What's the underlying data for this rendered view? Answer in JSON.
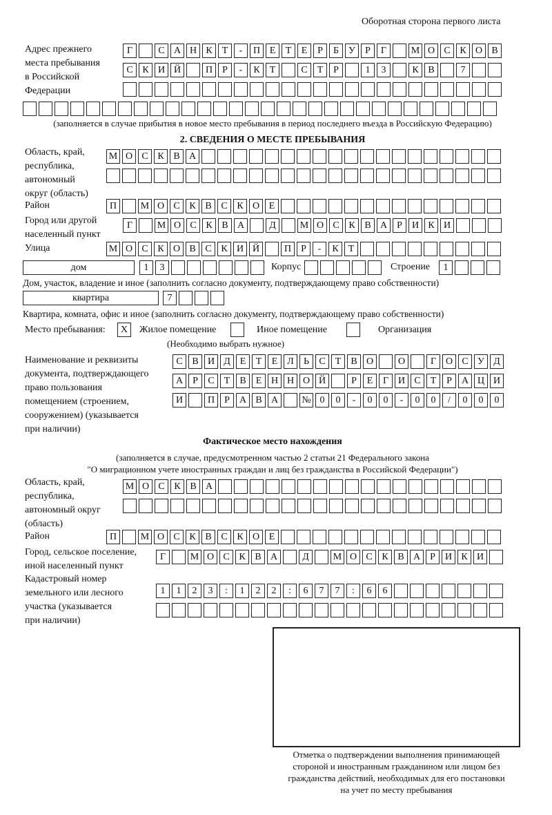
{
  "page_header": "Оборотная сторона первого листа",
  "previous_address": {
    "label": "Адрес прежнего\nместа пребывания\nв Российской\nФедерации",
    "rows": [
      [
        "Г",
        "",
        "С",
        "А",
        "Н",
        "К",
        "Т",
        "-",
        "П",
        "Е",
        "Т",
        "Е",
        "Р",
        "Б",
        "У",
        "Р",
        "Г",
        "",
        "М",
        "О",
        "С",
        "К",
        "О",
        "В"
      ],
      [
        "С",
        "К",
        "И",
        "Й",
        "",
        "П",
        "Р",
        "-",
        "К",
        "Т",
        "",
        "С",
        "Т",
        "Р",
        "",
        "1",
        "3",
        "",
        "К",
        "В",
        "",
        "7",
        "",
        ""
      ],
      [
        "",
        "",
        "",
        "",
        "",
        "",
        "",
        "",
        "",
        "",
        "",
        "",
        "",
        "",
        "",
        "",
        "",
        "",
        "",
        "",
        "",
        "",
        "",
        ""
      ],
      [
        "",
        "",
        "",
        "",
        "",
        "",
        "",
        "",
        "",
        "",
        "",
        "",
        "",
        "",
        "",
        "",
        "",
        "",
        "",
        "",
        "",
        "",
        "",
        "",
        "",
        "",
        "",
        "",
        "",
        ""
      ]
    ],
    "note": "(заполняется в случае прибытия в новое место пребывания в период последнего въезда в Российскую Федерацию)"
  },
  "section2": {
    "title": "2. СВЕДЕНИЯ О МЕСТЕ ПРЕБЫВАНИЯ",
    "region_label": "Область, край,\nреспублика,\nавтономный\nокруг (область)",
    "region_rows": [
      [
        "М",
        "О",
        "С",
        "К",
        "В",
        "А",
        "",
        "",
        "",
        "",
        "",
        "",
        "",
        "",
        "",
        "",
        "",
        "",
        "",
        "",
        "",
        "",
        "",
        "",
        ""
      ],
      [
        "",
        "",
        "",
        "",
        "",
        "",
        "",
        "",
        "",
        "",
        "",
        "",
        "",
        "",
        "",
        "",
        "",
        "",
        "",
        "",
        "",
        "",
        "",
        "",
        ""
      ]
    ],
    "district_label": "Район",
    "district_row": [
      "П",
      "",
      "М",
      "О",
      "С",
      "К",
      "В",
      "С",
      "К",
      "О",
      "Е",
      "",
      "",
      "",
      "",
      "",
      "",
      "",
      "",
      "",
      "",
      "",
      "",
      "",
      ""
    ],
    "city_label": "Город или другой\nнаселенный пункт",
    "city_row": [
      "Г",
      "",
      "М",
      "О",
      "С",
      "К",
      "В",
      "А",
      "",
      "Д",
      "",
      "М",
      "О",
      "С",
      "К",
      "В",
      "А",
      "Р",
      "И",
      "К",
      "И",
      "",
      "",
      ""
    ],
    "street_label": "Улица",
    "street_row": [
      "М",
      "О",
      "С",
      "К",
      "О",
      "В",
      "С",
      "К",
      "И",
      "Й",
      "",
      "П",
      "Р",
      "-",
      "К",
      "Т",
      "",
      "",
      "",
      "",
      "",
      "",
      "",
      "",
      ""
    ],
    "house_type": "дом",
    "house_row": [
      "1",
      "3",
      "",
      "",
      "",
      "",
      "",
      ""
    ],
    "building_label": "Корпус",
    "building_row": [
      "",
      "",
      "",
      "",
      ""
    ],
    "structure_label": "Строение",
    "structure_row": [
      "1",
      "",
      "",
      ""
    ],
    "house_note": "Дом, участок, владение и иное (заполнить согласно документу, подтверждающему право собственности)",
    "apartment_type": "квартира",
    "apartment_row": [
      "7",
      "",
      "",
      ""
    ],
    "apartment_note": "Квартира, комната, офис и иное (заполнить согласно документу, подтверждающему право собственности)",
    "stay_place_label": "Место пребывания:",
    "stay_options": [
      {
        "label": "Жилое помещение",
        "mark": "X"
      },
      {
        "label": "Иное помещение",
        "mark": ""
      },
      {
        "label": "Организация",
        "mark": ""
      }
    ],
    "stay_note": "(Необходимо выбрать нужное)",
    "document_label": "Наименование и реквизиты\nдокумента, подтверждающего\nправо пользования\nпомещением (строением,\nсооружением) (указывается\nпри наличии)",
    "document_rows": [
      [
        "С",
        "В",
        "И",
        "Д",
        "Е",
        "Т",
        "Е",
        "Л",
        "Ь",
        "С",
        "Т",
        "В",
        "О",
        "",
        "О",
        "",
        "Г",
        "О",
        "С",
        "У",
        "Д"
      ],
      [
        "А",
        "Р",
        "С",
        "Т",
        "В",
        "Е",
        "Н",
        "Н",
        "О",
        "Й",
        "",
        "Р",
        "Е",
        "Г",
        "И",
        "С",
        "Т",
        "Р",
        "А",
        "Ц",
        "И"
      ],
      [
        "И",
        "",
        "П",
        "Р",
        "А",
        "В",
        "А",
        "",
        "№",
        "0",
        "0",
        "-",
        "0",
        "0",
        "-",
        "0",
        "0",
        "/",
        "0",
        "0",
        "0"
      ]
    ]
  },
  "actual_location": {
    "title": "Фактическое место нахождения",
    "note_line1": "(заполняется в случае, предусмотренном частью 2 статьи 21 Федерального закона",
    "note_line2": "\"О миграционном учете иностранных граждан и лиц без гражданства в Российской Федерации\")",
    "region_label": "Область, край,\nреспублика,\nавтономный округ\n(область)",
    "region_rows": [
      [
        "М",
        "О",
        "С",
        "К",
        "В",
        "А",
        "",
        "",
        "",
        "",
        "",
        "",
        "",
        "",
        "",
        "",
        "",
        "",
        "",
        "",
        "",
        "",
        "",
        ""
      ],
      [
        "",
        "",
        "",
        "",
        "",
        "",
        "",
        "",
        "",
        "",
        "",
        "",
        "",
        "",
        "",
        "",
        "",
        "",
        "",
        "",
        "",
        "",
        "",
        ""
      ]
    ],
    "district_label": "Район",
    "district_row": [
      "П",
      "",
      "М",
      "О",
      "С",
      "К",
      "В",
      "С",
      "К",
      "О",
      "Е",
      "",
      "",
      "",
      "",
      "",
      "",
      "",
      "",
      "",
      "",
      "",
      "",
      "",
      ""
    ],
    "city_label": "Город, сельское поселение,\nиной населенный пункт",
    "city_row": [
      "Г",
      "",
      "М",
      "О",
      "С",
      "К",
      "В",
      "А",
      "",
      "Д",
      "",
      "М",
      "О",
      "С",
      "К",
      "В",
      "А",
      "Р",
      "И",
      "К",
      "И",
      ""
    ],
    "cadastral_label": "Кадастровый номер\nземельного или лесного\nучастка (указывается\nпри наличии)",
    "cadastral_rows": [
      [
        "1",
        "1",
        "2",
        "3",
        ":",
        "1",
        "2",
        "2",
        ":",
        "6",
        "7",
        "7",
        ":",
        "6",
        "6",
        "",
        "",
        "",
        "",
        "",
        "",
        ""
      ],
      [
        "",
        "",
        "",
        "",
        "",
        "",
        "",
        "",
        "",
        "",
        "",
        "",
        "",
        "",
        "",
        "",
        "",
        "",
        "",
        "",
        "",
        ""
      ]
    ]
  },
  "stamp_caption": "Отметка о подтверждении выполнения принимающей\nстороной и иностранным гражданином или лицом без\nгражданства действий, необходимых для его постановки\nна учет по месту пребывания"
}
